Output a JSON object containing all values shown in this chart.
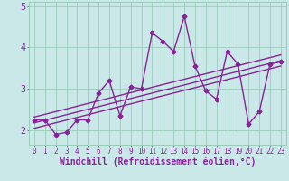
{
  "xlabel": "Windchill (Refroidissement éolien,°C)",
  "x_data": [
    0,
    1,
    2,
    3,
    4,
    5,
    6,
    7,
    8,
    9,
    10,
    11,
    12,
    13,
    14,
    15,
    16,
    17,
    18,
    19,
    20,
    21,
    22,
    23
  ],
  "y_data": [
    2.25,
    2.25,
    1.9,
    1.95,
    2.25,
    2.25,
    2.9,
    3.2,
    2.35,
    3.05,
    3.0,
    4.35,
    4.15,
    3.9,
    4.75,
    3.55,
    2.95,
    2.75,
    3.9,
    3.6,
    2.15,
    2.45,
    3.6,
    3.65
  ],
  "reg_line1": [
    [
      0,
      2.05
    ],
    [
      23,
      3.55
    ]
  ],
  "reg_line2": [
    [
      0,
      2.18
    ],
    [
      23,
      3.68
    ]
  ],
  "reg_line3": [
    [
      0,
      2.32
    ],
    [
      23,
      3.82
    ]
  ],
  "xlim": [
    -0.5,
    23.5
  ],
  "ylim": [
    1.65,
    5.1
  ],
  "yticks": [
    2,
    3,
    4
  ],
  "ytick_top": 5,
  "xticks": [
    0,
    1,
    2,
    3,
    4,
    5,
    6,
    7,
    8,
    9,
    10,
    11,
    12,
    13,
    14,
    15,
    16,
    17,
    18,
    19,
    20,
    21,
    22,
    23
  ],
  "bg_color": "#cbe8e8",
  "grid_color": "#99ccbb",
  "line_color": "#882299",
  "line_width": 1.0,
  "marker": "D",
  "marker_size": 2.5,
  "tick_fontsize": 5.5,
  "xlabel_fontsize": 7.0
}
